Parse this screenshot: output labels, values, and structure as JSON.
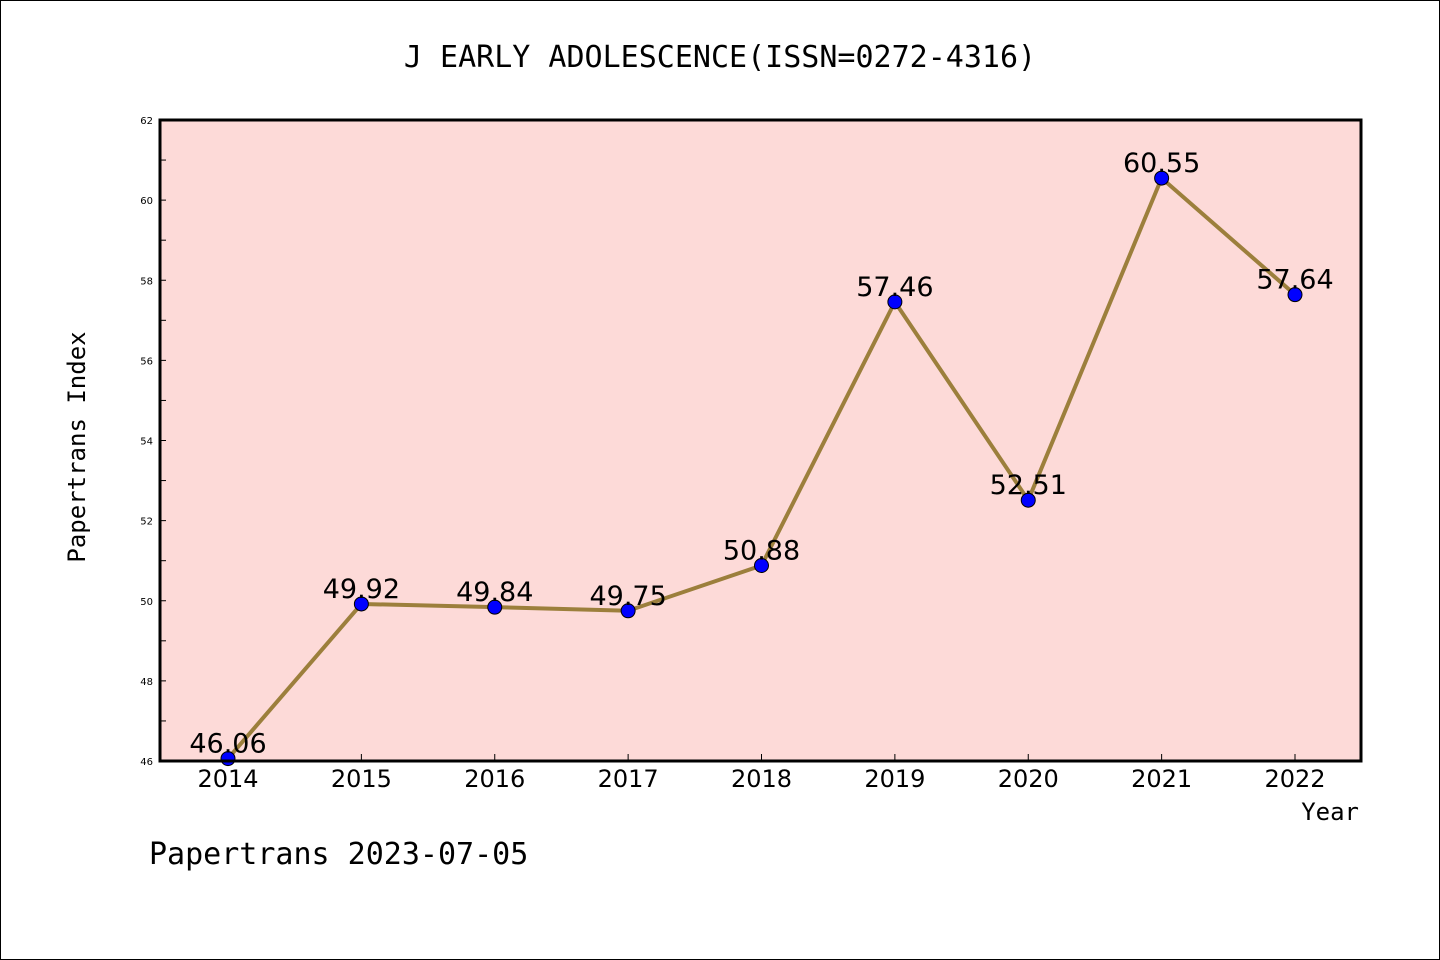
{
  "chart_data": {
    "type": "line",
    "title": "J EARLY ADOLESCENCE(ISSN=0272-4316)",
    "xlabel": "Year",
    "ylabel": "Papertrans Index",
    "categories": [
      "2014",
      "2015",
      "2016",
      "2017",
      "2018",
      "2019",
      "2020",
      "2021",
      "2022"
    ],
    "series": [
      {
        "values": [
          46.06,
          49.92,
          49.84,
          49.75,
          50.88,
          57.46,
          52.51,
          60.55,
          57.64
        ]
      }
    ],
    "data_labels": [
      "46.06",
      "49.92",
      "49.84",
      "49.75",
      "50.88",
      "57.46",
      "52.51",
      "60.55",
      "57.64"
    ],
    "ylim": [
      46,
      62
    ],
    "yticks": [
      46,
      48,
      50,
      52,
      54,
      56,
      58,
      60,
      62
    ],
    "grid": false,
    "legend": "none",
    "colors": {
      "plot_background": "#fddad8",
      "line": "#9c7f3c",
      "marker": "#0000ff",
      "axes": "#000000"
    }
  },
  "footer": "Papertrans 2023-07-05"
}
